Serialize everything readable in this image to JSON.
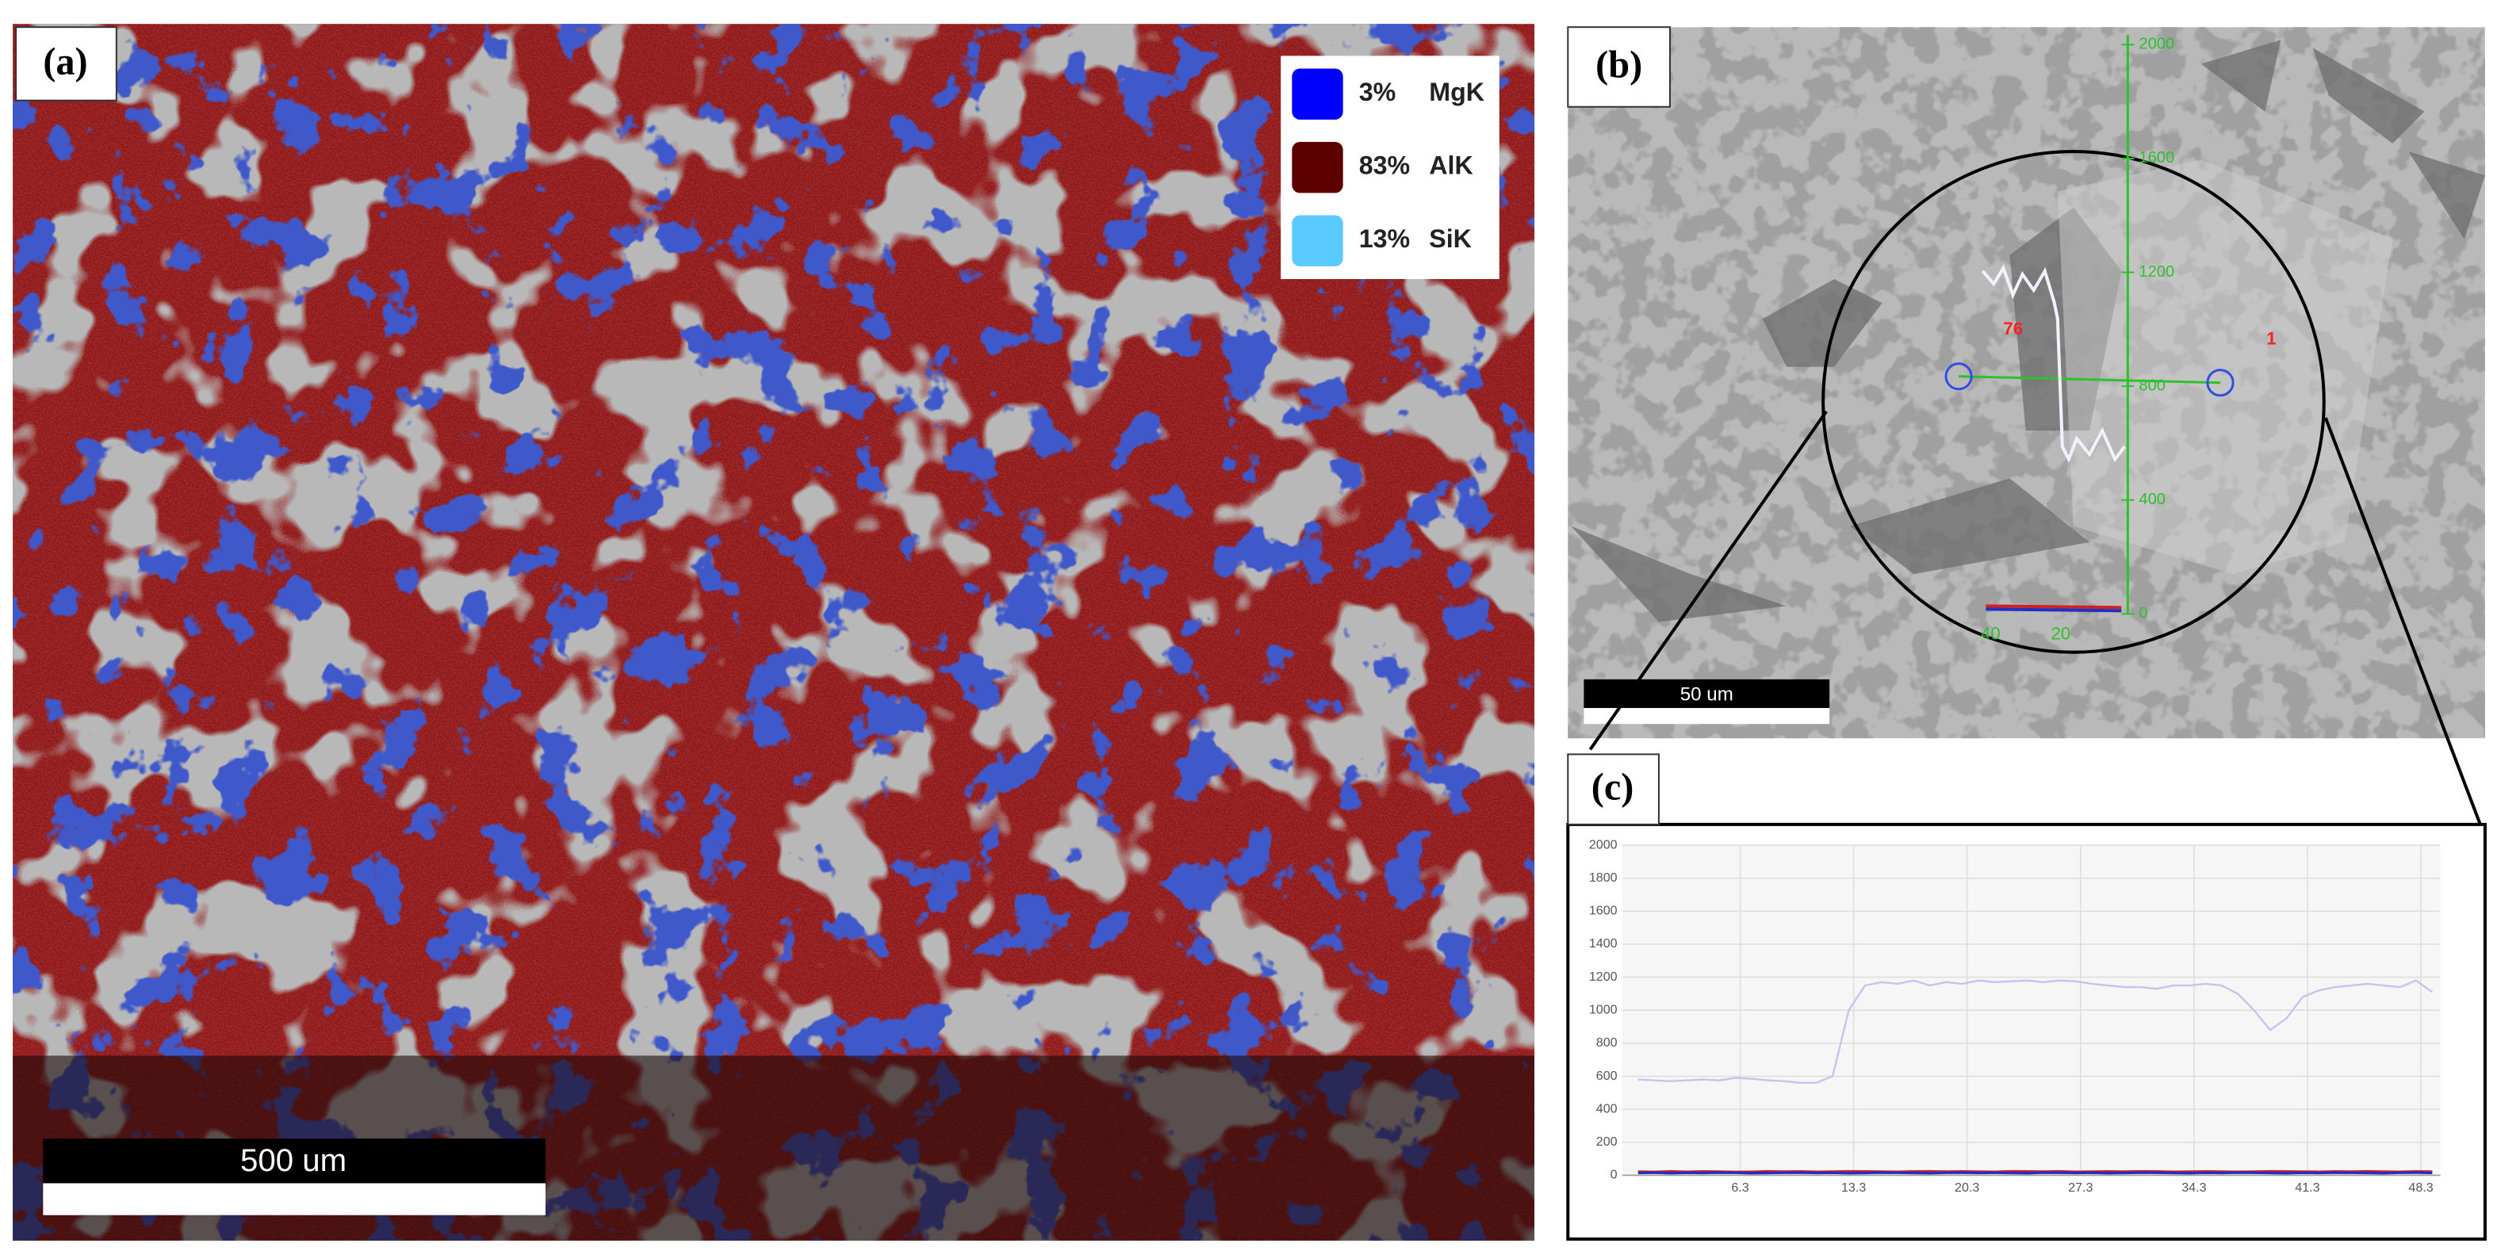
{
  "panel_labels": [
    "(a)",
    "(b)",
    "(c)"
  ],
  "map": {
    "legend": [
      {
        "percent": "3%",
        "element": "MgK",
        "color": "#0000ff"
      },
      {
        "percent": "83%",
        "element": "AlK",
        "color": "#5c0000"
      },
      {
        "percent": "13%",
        "element": "SiK",
        "color": "#5bcbff"
      }
    ],
    "scale_bar": "500 um"
  },
  "sem": {
    "axis_ticks": [
      "2000",
      "1600",
      "1200",
      "800",
      "400",
      "0"
    ],
    "labels": [
      "76",
      "1"
    ],
    "x_labels": [
      "40",
      "20"
    ],
    "scale_bar": "50 um"
  },
  "chart_data": {
    "type": "line",
    "x": [
      0,
      1,
      2,
      3,
      4,
      5,
      6,
      7,
      8,
      9,
      10,
      11,
      12,
      13,
      14,
      15,
      16,
      17,
      18,
      19,
      20,
      21,
      22,
      23,
      24,
      25,
      26,
      27,
      28,
      29,
      30,
      31,
      32,
      33,
      34,
      35,
      36,
      37,
      38,
      39,
      40,
      41,
      42,
      43,
      44,
      45,
      46,
      47,
      48,
      49
    ],
    "series": [
      {
        "color": "#c9c2ec",
        "values": [
          580,
          575,
          570,
          575,
          580,
          575,
          590,
          585,
          575,
          570,
          560,
          560,
          600,
          1000,
          1150,
          1170,
          1160,
          1180,
          1150,
          1170,
          1160,
          1180,
          1170,
          1175,
          1180,
          1170,
          1180,
          1175,
          1160,
          1150,
          1140,
          1140,
          1130,
          1150,
          1150,
          1160,
          1150,
          1100,
          1000,
          880,
          950,
          1080,
          1120,
          1140,
          1150,
          1160,
          1150,
          1140,
          1180,
          1110
        ]
      },
      {
        "color": "#d02020",
        "values": [
          22,
          20,
          24,
          21,
          23,
          22,
          20,
          21,
          24,
          22,
          23,
          21,
          22,
          24,
          23,
          22,
          21,
          23,
          24,
          22,
          23,
          22,
          21,
          24,
          23,
          22,
          24,
          21,
          22,
          23,
          22,
          24,
          23,
          21,
          22,
          23,
          22,
          21,
          22,
          24,
          23,
          22,
          21,
          23,
          22,
          24,
          22,
          21,
          23,
          22
        ]
      },
      {
        "color": "#2030c0",
        "values": [
          14,
          16,
          13,
          15,
          14,
          16,
          15,
          13,
          14,
          15,
          16,
          14,
          15,
          13,
          14,
          16,
          15,
          14,
          13,
          15,
          16,
          14,
          15,
          14,
          13,
          16,
          15,
          14,
          15,
          13,
          14,
          16,
          15,
          14,
          13,
          15,
          14,
          16,
          15,
          14,
          13,
          15,
          14,
          16,
          15,
          14,
          13,
          15,
          16,
          14
        ]
      }
    ],
    "xlim": [
      0,
      49.5
    ],
    "ylim": [
      0,
      2000
    ],
    "xticks": [
      6.3,
      13.3,
      20.3,
      27.3,
      34.3,
      41.3,
      48.3
    ],
    "yticks": [
      0,
      200,
      400,
      600,
      800,
      1000,
      1200,
      1400,
      1600,
      1800,
      2000
    ],
    "grid": true
  }
}
